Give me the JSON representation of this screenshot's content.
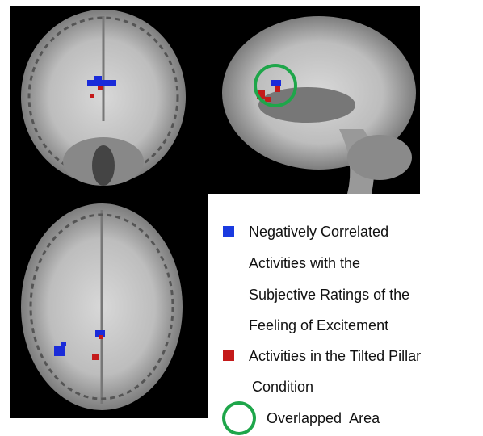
{
  "legend": {
    "items": [
      {
        "lines": [
          "Negatively Correlated",
          "Activities with the",
          "Subjective Ratings of the",
          "Feeling of Excitement"
        ]
      },
      {
        "lines": [
          "Activities in the Tilted Pillar",
          "Condition"
        ]
      },
      {
        "lines": [
          "Overlapped  Area"
        ]
      }
    ]
  }
}
